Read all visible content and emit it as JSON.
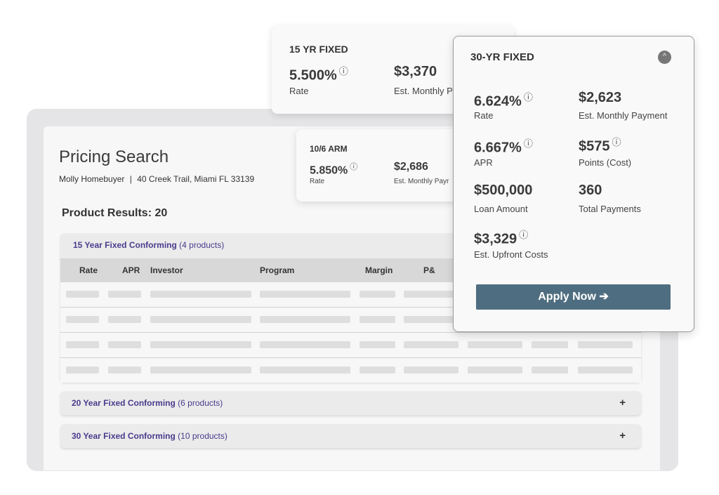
{
  "search": {
    "title": "Pricing Search",
    "borrower": "Molly Homebuyer",
    "separator": "|",
    "address": "40 Creek Trail, Miami FL 33139",
    "results_label": "Product Results: 20"
  },
  "groups": [
    {
      "name": "15 Year Fixed Conforming",
      "count": "(4 products)",
      "expanded": true
    },
    {
      "name": "20 Year Fixed Conforming",
      "count": "(6 products)",
      "toggle": "+"
    },
    {
      "name": "30 Year Fixed Conforming",
      "count": "(10 products)",
      "toggle": "+"
    }
  ],
  "table": {
    "columns": [
      "Rate",
      "APR",
      "Investor",
      "Program",
      "Margin",
      "P&"
    ]
  },
  "card_15yr": {
    "title": "15 YR FIXED",
    "rate": "5.500%",
    "rate_label": "Rate",
    "payment": "$3,370",
    "payment_label": "Est. Monthly P"
  },
  "card_10arm": {
    "title": "10/6 ARM",
    "rate": "5.850%",
    "rate_label": "Rate",
    "payment": "$2,686",
    "payment_label": "Est. Monthly Payr"
  },
  "card_30yr": {
    "title": "30-YR FIXED",
    "rate": "6.624%",
    "rate_label": "Rate",
    "payment": "$2,623",
    "payment_label": "Est. Monthly Payment",
    "apr": "6.667%",
    "apr_label": "APR",
    "points": "$575",
    "points_label": "Points (Cost)",
    "loan": "$500,000",
    "loan_label": "Loan Amount",
    "payments": "360",
    "payments_label": "Total Payments",
    "upfront": "$3,329",
    "upfront_label": "Est. Upfront Costs",
    "apply_label": "Apply Now ➔"
  },
  "icons": {
    "info": "ⓘ",
    "collapse": "^"
  }
}
